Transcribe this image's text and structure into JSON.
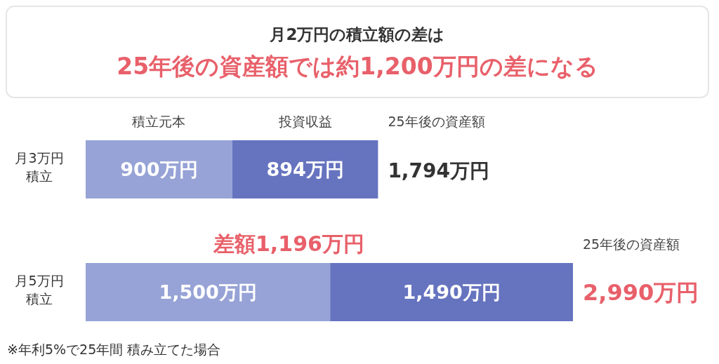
{
  "chart_data": {
    "type": "bar",
    "orientation": "horizontal",
    "stacked": true,
    "title": "月2万円の積立額の差は",
    "subtitle": "25年後の資産額では約1,200万円の差になる",
    "categories": [
      "月3万円積立",
      "月5万円積立"
    ],
    "xlim": [
      0,
      2990
    ],
    "tick_labels": "y",
    "series": [
      {
        "name": "積立元本",
        "color": "#97a3d6",
        "values": [
          900,
          1500
        ],
        "value_labels": [
          "900万円",
          "1,500万円"
        ]
      },
      {
        "name": "投資収益",
        "color": "#6673bf",
        "values": [
          894,
          1490
        ],
        "value_labels": [
          "894万円",
          "1,490万円"
        ]
      }
    ],
    "totals": [
      "1,794万円",
      "2,990万円"
    ],
    "annotations": [
      "25年後の資産額",
      "25年後の資産額",
      "差額1,196万円",
      "※年利5%で25年間 積み立てた場合"
    ]
  }
}
